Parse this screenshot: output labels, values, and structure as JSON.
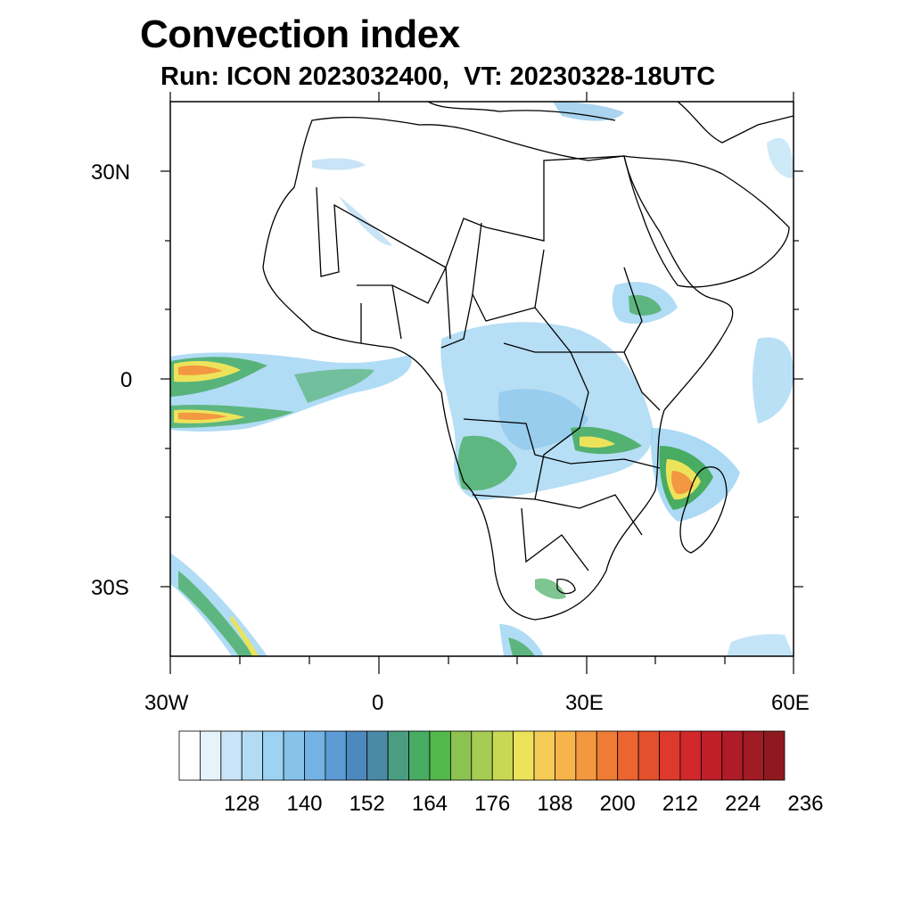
{
  "title": "Convection index",
  "subtitle": "Run: ICON 2023032400,  VT: 20230328-18UTC",
  "axes": {
    "lat_labels": [
      "30N",
      "0",
      "30S"
    ],
    "lon_labels": [
      "30W",
      "0",
      "30E",
      "60E"
    ]
  },
  "colorbar": {
    "labels": [
      "128",
      "140",
      "152",
      "164",
      "176",
      "188",
      "200",
      "212",
      "224",
      "236"
    ],
    "colors": [
      "#ffffff",
      "#e6f3fb",
      "#c8e4f6",
      "#b3dcf4",
      "#9dd3f2",
      "#86c2ea",
      "#73b2e3",
      "#5c9bd4",
      "#4d88bf",
      "#4a8aa6",
      "#4b9d82",
      "#48ac63",
      "#53b84a",
      "#8cc350",
      "#a6cc52",
      "#c9d853",
      "#ede35a",
      "#f6cc57",
      "#f6b44b",
      "#f39740",
      "#ef7c34",
      "#ea6530",
      "#e4502c",
      "#dd3a2d",
      "#d2282b",
      "#c01f2a",
      "#ae1c27",
      "#a01b24",
      "#8e1a1f"
    ]
  },
  "colors": {
    "low": "#9dd3f2",
    "mid": "#48ac63",
    "high": "#ede35a",
    "peak": "#f39740",
    "border": "#000000"
  }
}
